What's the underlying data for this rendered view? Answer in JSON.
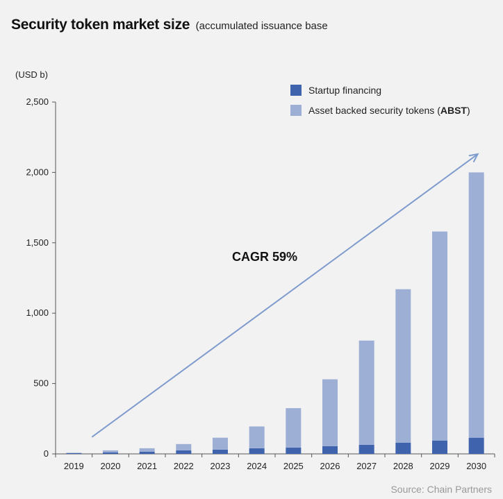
{
  "header": {
    "title": "Security token market size",
    "subtitle": "(accumulated issuance base"
  },
  "unit_label": "(USD b)",
  "annotation": "CAGR 59%",
  "source": "Source: Chain Partners",
  "legend": {
    "items": [
      {
        "label": "Startup financing",
        "color": "#3f64ad"
      },
      {
        "label_plain": "Asset backed security tokens (",
        "label_bold": "ABST",
        "label_tail": ")",
        "color": "#9eafd6"
      }
    ],
    "placement": "top-right"
  },
  "chart_data": {
    "type": "bar",
    "stacked": true,
    "title": "Security token market size",
    "ylabel": "(USD b)",
    "xlabel": "",
    "ylim": [
      0,
      2500
    ],
    "yticks": [
      "0",
      "500",
      "1,000",
      "1,500",
      "2,000",
      "2,500"
    ],
    "ytick_values": [
      0,
      500,
      1000,
      1500,
      2000,
      2500
    ],
    "categories": [
      "2019",
      "2020",
      "2021",
      "2022",
      "2023",
      "2024",
      "2025",
      "2026",
      "2027",
      "2028",
      "2029",
      "2030"
    ],
    "series": [
      {
        "name": "Startup financing",
        "color": "#3f64ad",
        "values": [
          5,
          10,
          15,
          25,
          30,
          40,
          45,
          55,
          65,
          80,
          95,
          115
        ]
      },
      {
        "name": "Asset backed security tokens (ABST)",
        "color": "#9eafd6",
        "values": [
          3,
          15,
          25,
          45,
          85,
          155,
          280,
          475,
          740,
          1090,
          1485,
          1885
        ]
      }
    ],
    "trend_arrow": {
      "label": "CAGR 59%",
      "from": [
        "2019",
        120
      ],
      "to": [
        "2030",
        2130
      ]
    },
    "grid": false
  }
}
